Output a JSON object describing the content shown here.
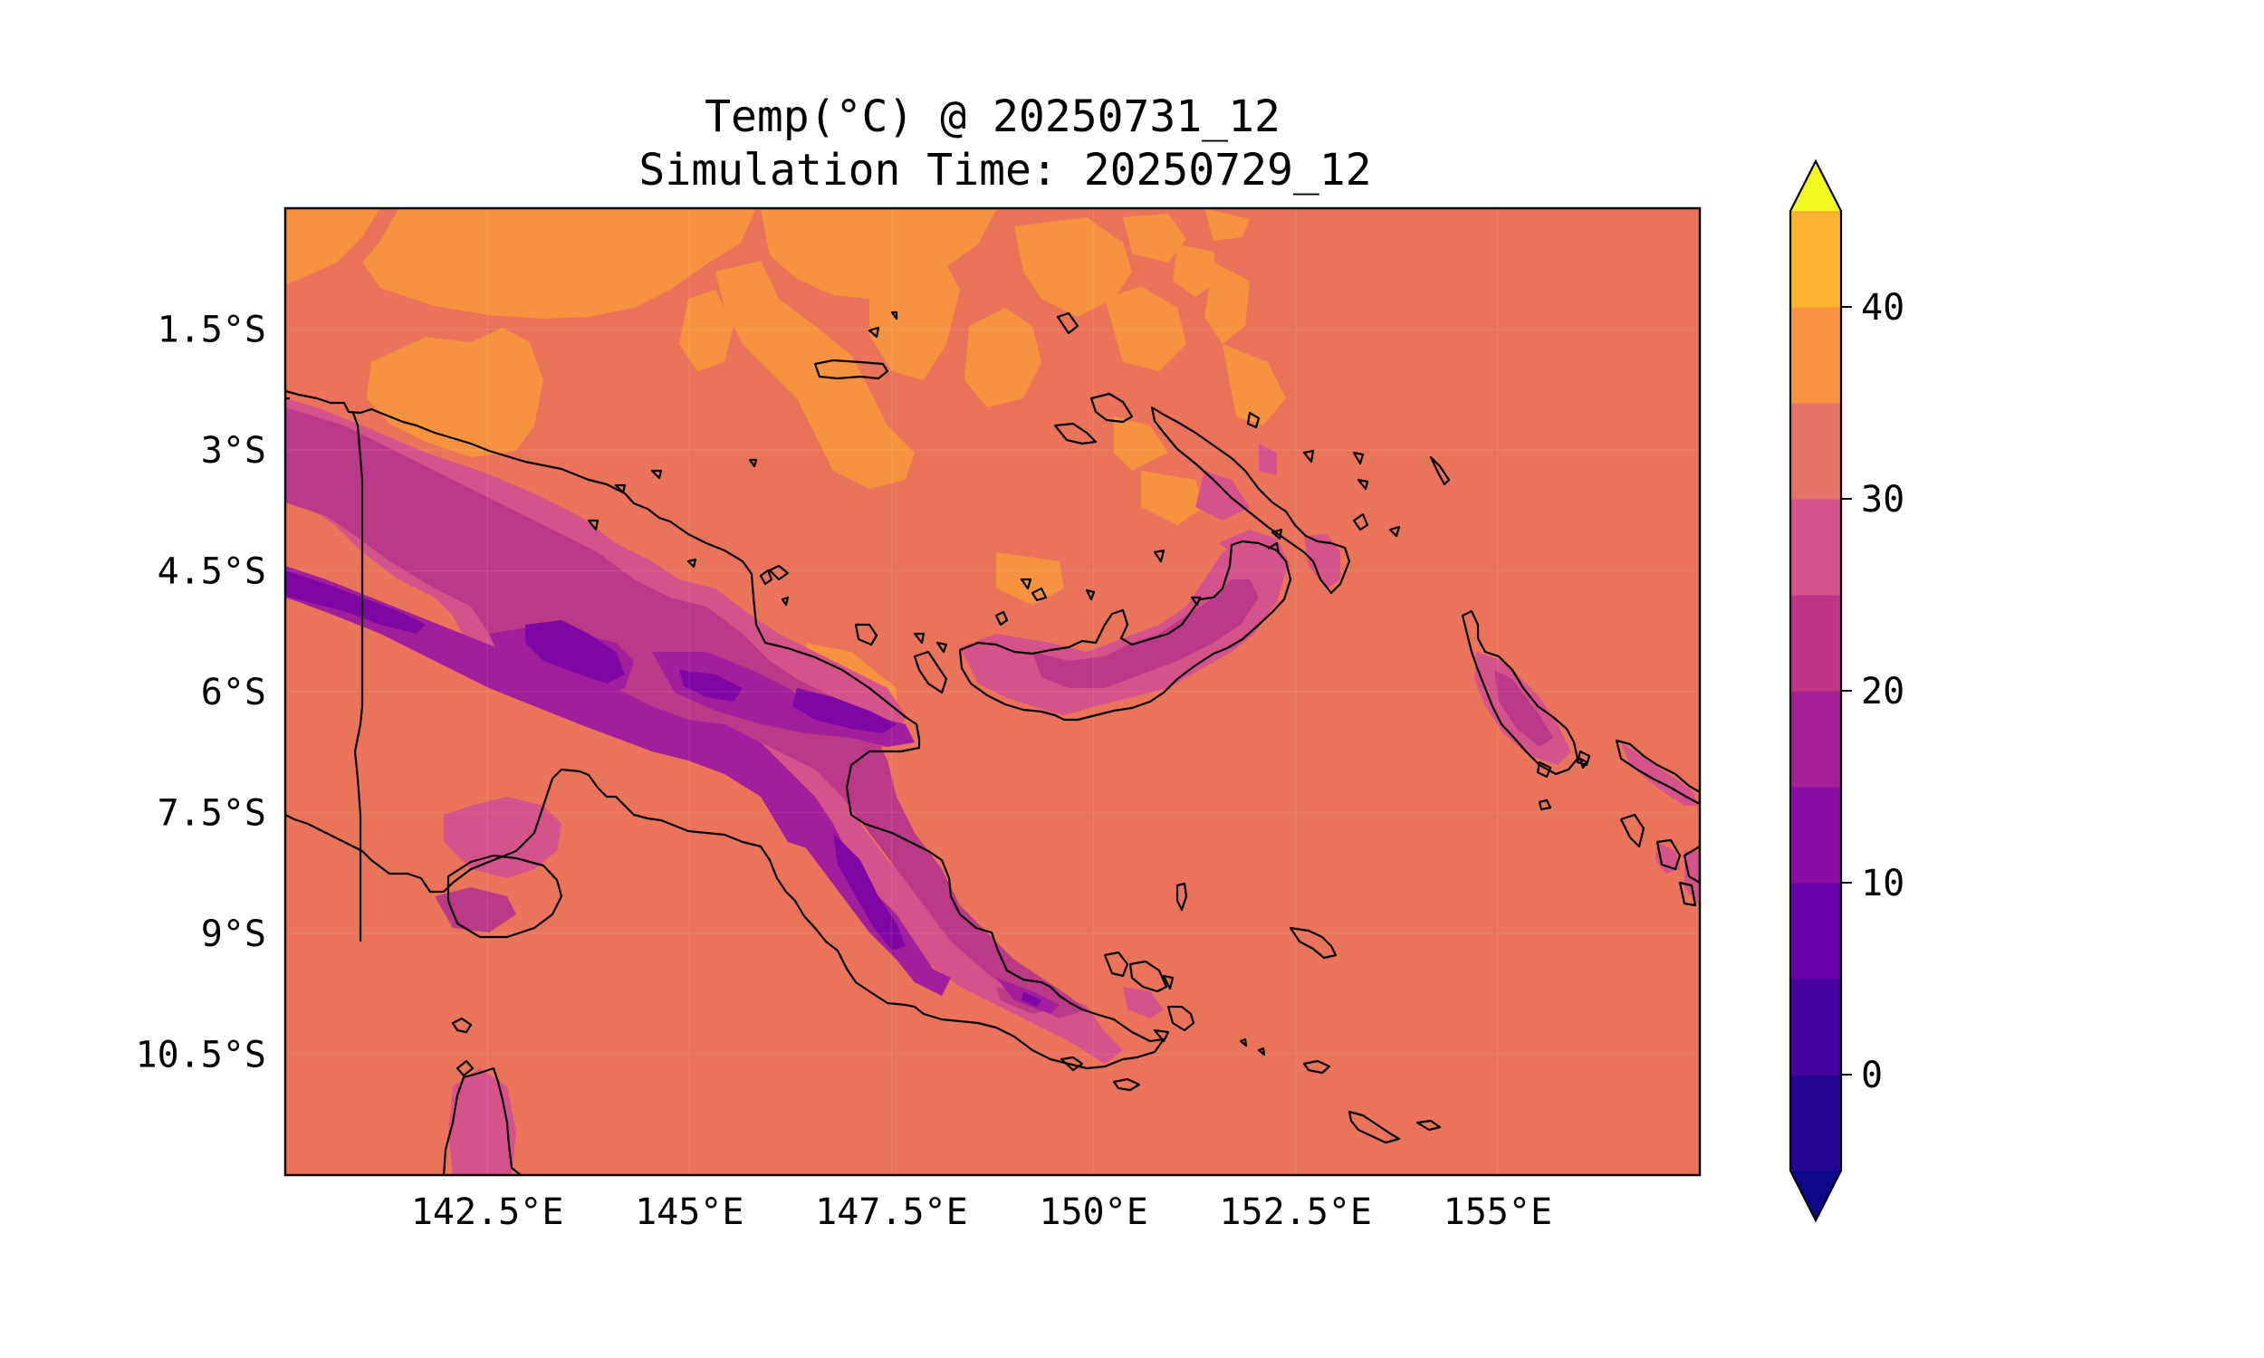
{
  "title": {
    "line1": "Temp(°C) @ 20250731_12",
    "line2": "Simulation Time: 20250729_12"
  },
  "map": {
    "region": "Papua New Guinea",
    "extent": {
      "lon_min": 140.0,
      "lon_max": 157.5,
      "lat_min": -12.0,
      "lat_max": 0.0
    },
    "x_ticks": [
      {
        "value": 142.5,
        "label": "142.5°E"
      },
      {
        "value": 145.0,
        "label": "145°E"
      },
      {
        "value": 147.5,
        "label": "147.5°E"
      },
      {
        "value": 150.0,
        "label": "150°E"
      },
      {
        "value": 152.5,
        "label": "152.5°E"
      },
      {
        "value": 155.0,
        "label": "155°E"
      }
    ],
    "y_ticks": [
      {
        "value": -1.5,
        "label": "1.5°S"
      },
      {
        "value": -3.0,
        "label": "3°S"
      },
      {
        "value": -4.5,
        "label": "4.5°S"
      },
      {
        "value": -6.0,
        "label": "6°S"
      },
      {
        "value": -7.5,
        "label": "7.5°S"
      },
      {
        "value": -9.0,
        "label": "9°S"
      },
      {
        "value": -10.5,
        "label": "10.5°S"
      }
    ]
  },
  "colorbar": {
    "colormap": "plasma",
    "extend": "both",
    "vmin": -5,
    "vmax": 45,
    "step": 5,
    "colors": [
      "#0d0887",
      "#240691",
      "#48039f",
      "#6a00a8",
      "#8a0da4",
      "#a41f9a",
      "#bd3786",
      "#d2548a",
      "#e4736a",
      "#f89441",
      "#fdb32f",
      "#f1e62a",
      "#f0f921"
    ],
    "ticks": [
      {
        "value": 0,
        "label": "0"
      },
      {
        "value": 10,
        "label": "10"
      },
      {
        "value": 20,
        "label": "20"
      },
      {
        "value": 30,
        "label": "30"
      },
      {
        "value": 40,
        "label": "40"
      }
    ]
  }
}
